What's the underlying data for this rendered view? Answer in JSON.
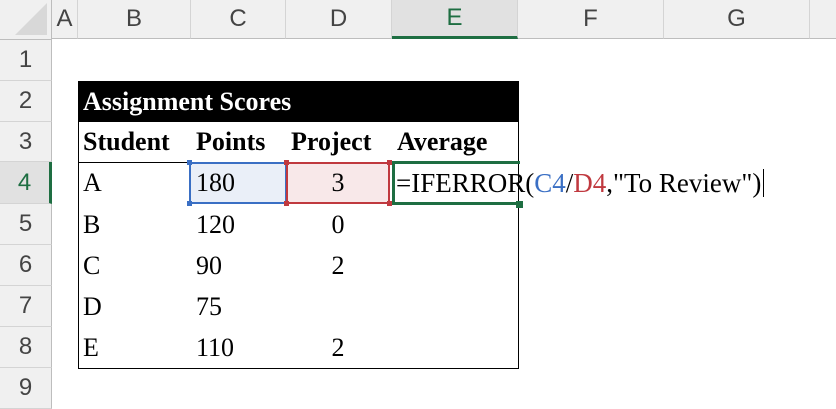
{
  "columns": [
    "A",
    "B",
    "C",
    "D",
    "E",
    "F",
    "G"
  ],
  "selected_column": "E",
  "rows": [
    "1",
    "2",
    "3",
    "4",
    "5",
    "6",
    "7",
    "8",
    "9"
  ],
  "selected_row": "4",
  "table": {
    "title": "Assignment Scores",
    "headers": [
      "Student",
      "Points",
      "Project",
      "Average"
    ],
    "data": [
      [
        "A",
        "180",
        "3"
      ],
      [
        "B",
        "120",
        "0"
      ],
      [
        "C",
        "90",
        "2"
      ],
      [
        "D",
        "75",
        ""
      ],
      [
        "E",
        "110",
        "2"
      ]
    ]
  },
  "formula": {
    "prefix": "=IFERROR(",
    "ref1": "C4",
    "slash": "/",
    "ref2": "D4",
    "suffix": ",\"To Review\")"
  },
  "colors": {
    "ref1": "#3a6fc4",
    "ref2": "#c0393f",
    "active": "#1e6e42"
  }
}
